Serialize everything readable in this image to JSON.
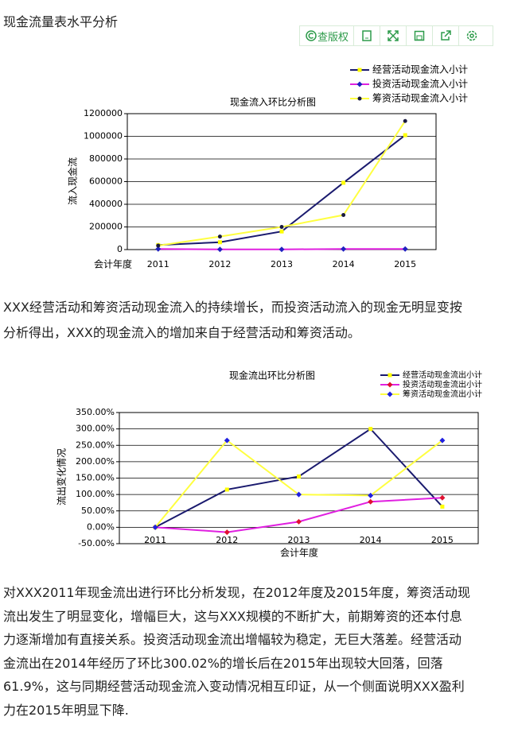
{
  "header": {
    "title": "现金流量表水平分析"
  },
  "toolbar": {
    "copyright": "查版权"
  },
  "chart_data": [
    {
      "type": "line",
      "title": "现金流入环比分析图",
      "y_label": "流入现金流",
      "x_label": "会计年度",
      "categories": [
        "2011",
        "2012",
        "2013",
        "2014",
        "2015"
      ],
      "ylim": [
        0,
        1200000
      ],
      "yticks": [
        0,
        200000,
        400000,
        600000,
        800000,
        1000000,
        1200000
      ],
      "grid": true,
      "series": [
        {
          "name": "经营活动现金流入小计",
          "color": "#1a1a6e",
          "marker_color": "#ffff00",
          "marker": "square",
          "values": [
            40000,
            65000,
            160000,
            590000,
            1010000
          ]
        },
        {
          "name": "投资活动现金流入小计",
          "color": "#e020e0",
          "marker_color": "#2020c0",
          "marker": "diamond",
          "values": [
            5000,
            2000,
            2000,
            5000,
            5000
          ]
        },
        {
          "name": "筹资活动现金流入小计",
          "color": "#ffff40",
          "marker_color": "#1a1a40",
          "marker": "circle",
          "values": [
            35000,
            115000,
            200000,
            305000,
            1135000
          ]
        }
      ]
    },
    {
      "type": "line",
      "title": "现金流出环比分析图",
      "y_label": "流出变化情况",
      "x_label": "会计年度",
      "categories": [
        "2011",
        "2012",
        "2013",
        "2014",
        "2015"
      ],
      "ylim": [
        -50,
        350
      ],
      "yticks": [
        {
          "value": -50,
          "label": "-50.00%"
        },
        {
          "value": 0,
          "label": "0.00%"
        },
        {
          "value": 50,
          "label": "50.00%"
        },
        {
          "value": 100,
          "label": "100.00%"
        },
        {
          "value": 150,
          "label": "150.00%"
        },
        {
          "value": 200,
          "label": "200.00%"
        },
        {
          "value": 250,
          "label": "250.00%"
        },
        {
          "value": 300,
          "label": "300.00%"
        },
        {
          "value": 350,
          "label": "350.00%"
        }
      ],
      "grid": true,
      "series": [
        {
          "name": "经营活动现金流出小计",
          "color": "#1a1a6e",
          "marker_color": "#ffff00",
          "marker": "square",
          "values": [
            0,
            115,
            155,
            300,
            63
          ]
        },
        {
          "name": "投资活动现金流出小计",
          "color": "#e020e0",
          "marker_color": "#e01030",
          "marker": "diamond",
          "values": [
            0,
            -15,
            17,
            78,
            90
          ]
        },
        {
          "name": "筹资活动现金流出小计",
          "color": "#ffff40",
          "marker_color": "#2020e0",
          "marker": "diamond",
          "values": [
            0,
            265,
            100,
            97,
            265
          ]
        }
      ]
    }
  ],
  "paragraphs": [
    [
      "XXX经营活动和筹资活动现金流入的持续增长，而投资活动流入的现金无明显变按",
      "分析得出，XXX的现金流入的增加来自于经营活动和筹资活动。"
    ],
    [
      "对XXX2011年现金流出进行环比分析发现，在2012年度及2015年度，筹资活动现",
      "流出发生了明显变化，增幅巨大，这与XXX规模的不断扩大，前期筹资的还本付息",
      "力逐渐增加有直接关系。投资活动现金流出增幅较为稳定，无巨大落差。经营活动",
      "金流出在2014年经历了环比300.02%的增长后在2015年出现较大回落，回落",
      "61.9%，这与同期经营活动现金流入变动情况相互印证，从一个侧面说明XXX盈利",
      "力在2015年明显下降."
    ]
  ]
}
